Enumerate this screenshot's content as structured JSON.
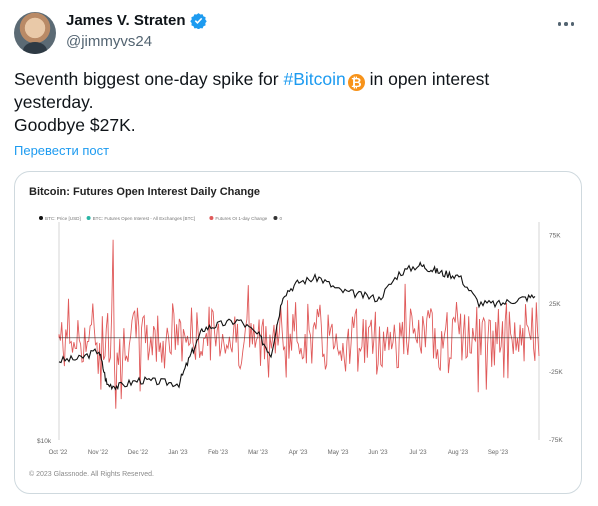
{
  "tweet": {
    "author_name": "James V. Straten",
    "handle": "@jimmyvs24",
    "text_line1_before": "Seventh biggest one-day spike for ",
    "hashtag": "#Bitcoin",
    "text_line1_after": " in open interest",
    "text_line2": "yesterday.",
    "text_line3": "Goodbye $27K.",
    "translate_label": "Перевести пост",
    "emoji": "bitcoin-emoji"
  },
  "icons": {
    "verified": "verified-badge-icon",
    "more": "more-options-icon"
  },
  "colors": {
    "accent": "#1d9bf0",
    "price_line": "#111111",
    "oi_bars": "#e05a5a",
    "emoji": "#f7931a"
  },
  "chart_data": {
    "type": "line",
    "title": "Bitcoin: Futures Open Interest Daily Change",
    "legend": [
      {
        "label": "BTC: Price [USD]",
        "color": "#111111"
      },
      {
        "label": "BTC: Futures Open Interest - All Exchanges [BTC]",
        "color": "#2ab5a5"
      },
      {
        "label": "Futures OI 1-day Change",
        "color": "#e05a5a"
      },
      {
        "label": "0",
        "color": "#333333"
      }
    ],
    "legend_placement": "top-left",
    "x_ticks": [
      "Oct '22",
      "Nov '22",
      "Dec '22",
      "Jan '23",
      "Feb '23",
      "Mar '23",
      "Apr '23",
      "May '23",
      "Jun '23",
      "Jul '23",
      "Aug '23",
      "Sep '23"
    ],
    "left_axis_label": "$10k",
    "right_ticks": [
      "75K",
      "25K",
      "-25K",
      "-75K"
    ],
    "right_tick_values": [
      75000,
      25000,
      -25000,
      -75000
    ],
    "right_range": [
      -75000,
      85000
    ],
    "price_range": [
      10000,
      35500
    ],
    "price": {
      "months": [
        0,
        0.5,
        1,
        1.2,
        1.5,
        2,
        2.5,
        3,
        3.3,
        3.6,
        4,
        4.5,
        5,
        5.3,
        5.6,
        6,
        6.5,
        7,
        7.5,
        8,
        8.5,
        9,
        9.3,
        9.6,
        10,
        10.5,
        11,
        11.5,
        11.9
      ],
      "values": [
        19300,
        19500,
        20500,
        16500,
        16300,
        17000,
        16800,
        16600,
        20000,
        23000,
        23500,
        24000,
        22200,
        20000,
        27000,
        28500,
        29000,
        27500,
        27000,
        26500,
        29500,
        30500,
        30000,
        29500,
        29200,
        26000,
        25900,
        26500,
        26800
      ]
    },
    "oi_change_note": "daily bars; largest spike ~ +70K in Nov '22, recent spike ~ +25K at end",
    "oi_change_seed": 7,
    "grid": false
  },
  "footer": {
    "copyright": "© 2023 Glassnode. All Rights Reserved."
  }
}
